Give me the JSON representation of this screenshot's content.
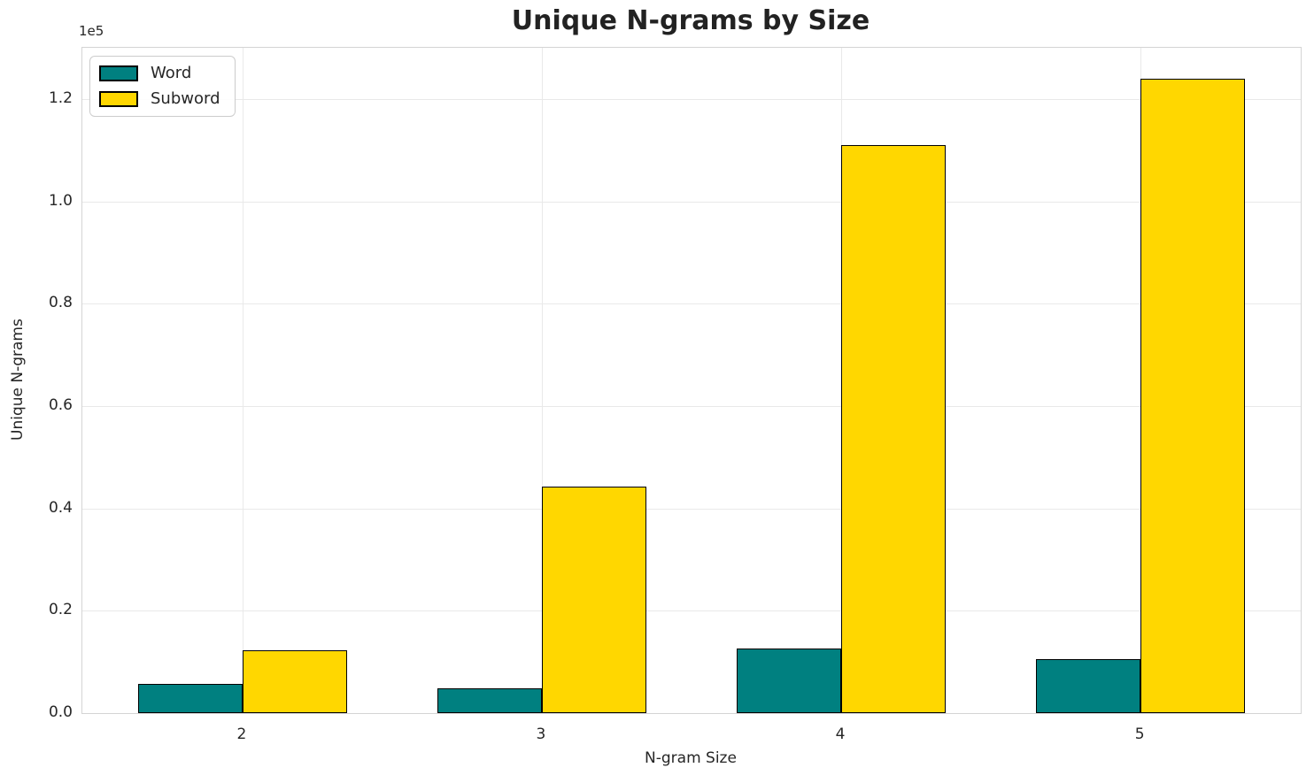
{
  "chart_data": {
    "type": "bar",
    "title": "Unique N-grams by Size",
    "xlabel": "N-gram Size",
    "ylabel": "Unique N-grams",
    "y_offset_label": "1e5",
    "categories": [
      "2",
      "3",
      "4",
      "5"
    ],
    "series": [
      {
        "name": "Word",
        "color": "#008080",
        "values": [
          5700,
          4900,
          12600,
          10600
        ]
      },
      {
        "name": "Subword",
        "color": "#FFD700",
        "values": [
          12200,
          44200,
          111000,
          124000
        ]
      }
    ],
    "bar_width": 0.35,
    "bar_edge_color": "#000000",
    "xlim": [
      -0.535,
      3.535
    ],
    "ylim": [
      0,
      130000
    ],
    "yticks": [
      0,
      20000,
      40000,
      60000,
      80000,
      100000,
      120000
    ],
    "ytick_labels": [
      "0.0",
      "0.2",
      "0.4",
      "0.6",
      "0.8",
      "1.0",
      "1.2"
    ],
    "grid": true,
    "legend_position": "upper-left",
    "colors": {
      "grid": "#e9e9e9",
      "spine": "#d4d4d4",
      "text": "#262626",
      "title": "#222222"
    }
  }
}
